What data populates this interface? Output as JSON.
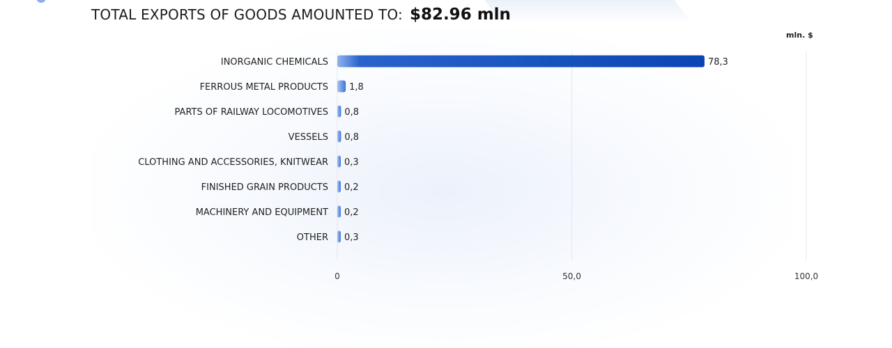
{
  "header": {
    "label": "TOTAL EXPORTS OF GOODS AMOUNTED TO:",
    "value": "$82.96 mln"
  },
  "chart_data": {
    "type": "bar",
    "orientation": "horizontal",
    "unit": "mln. $",
    "categories": [
      "INORGANIC CHEMICALS",
      "FERROUS METAL PRODUCTS",
      "PARTS OF RAILWAY LOCOMOTIVES",
      "VESSELS",
      "CLOTHING AND ACCESSORIES, KNITWEAR",
      "FINISHED GRAIN PRODUCTS",
      "MACHINERY AND EQUIPMENT",
      "OTHER"
    ],
    "values": [
      78.3,
      1.8,
      0.8,
      0.8,
      0.3,
      0.2,
      0.2,
      0.3
    ],
    "value_labels": [
      "78,3",
      "1,8",
      "0,8",
      "0,8",
      "0,3",
      "0,2",
      "0,2",
      "0,3"
    ],
    "xlim": [
      0,
      100
    ],
    "xticks": [
      0,
      50,
      100
    ],
    "xtick_labels": [
      "0",
      "50,0",
      "100,0"
    ],
    "grid": true,
    "colors": {
      "bar_main": "#0a45b4",
      "bar_light": "#6e9ce8",
      "grid": "#e3e7ee"
    }
  }
}
